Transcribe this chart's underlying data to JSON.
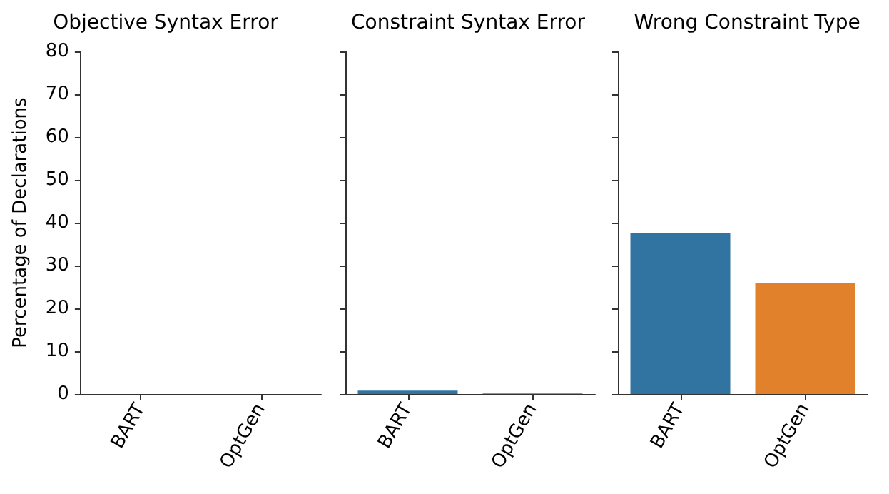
{
  "chart_data": [
    {
      "type": "bar",
      "title": "Objective Syntax Error",
      "ylabel": "Percentage of Declarations",
      "categories": [
        "BART",
        "OptGen"
      ],
      "values": [
        0,
        0
      ],
      "colors": [
        "#3274a1",
        "#e1812c"
      ],
      "ylim": [
        0,
        80
      ],
      "yticks": [
        0,
        10,
        20,
        30,
        40,
        50,
        60,
        70,
        80
      ],
      "grid": false
    },
    {
      "type": "bar",
      "title": "Constraint Syntax Error",
      "categories": [
        "BART",
        "OptGen"
      ],
      "values": [
        0.8,
        0.3
      ],
      "colors": [
        "#3274a1",
        "#e1812c"
      ],
      "ylim": [
        0,
        80
      ],
      "yticks": [
        0,
        10,
        20,
        30,
        40,
        50,
        60,
        70,
        80
      ],
      "tick_labels": "x",
      "grid": false
    },
    {
      "type": "bar",
      "title": "Wrong Constraint Type",
      "categories": [
        "BART",
        "OptGen"
      ],
      "values": [
        37.5,
        26.0
      ],
      "colors": [
        "#3274a1",
        "#e1812c"
      ],
      "ylim": [
        0,
        80
      ],
      "yticks": [
        0,
        10,
        20,
        30,
        40,
        50,
        60,
        70,
        80
      ],
      "tick_labels": "x",
      "grid": false
    }
  ]
}
